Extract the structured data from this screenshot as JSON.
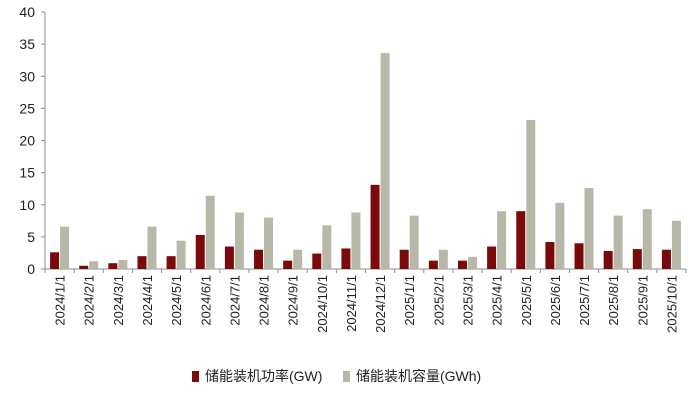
{
  "chart_data": {
    "type": "bar",
    "categories": [
      "2024/1/1",
      "2024/2/1",
      "2024/3/1",
      "2024/4/1",
      "2024/5/1",
      "2024/6/1",
      "2024/7/1",
      "2024/8/1",
      "2024/9/1",
      "2024/10/1",
      "2024/11/1",
      "2024/12/1",
      "2025/1/1",
      "2025/2/1",
      "2025/3/1",
      "2025/4/1",
      "2025/5/1",
      "2025/6/1",
      "2025/7/1",
      "2025/8/1",
      "2025/9/1",
      "2025/10/1"
    ],
    "series": [
      {
        "name": "储能装机功率(GW)",
        "color": "#7a0a0a",
        "values": [
          2.6,
          0.5,
          0.9,
          2.0,
          2.0,
          5.3,
          3.5,
          3.0,
          1.3,
          2.4,
          3.2,
          13.1,
          3.0,
          1.3,
          1.3,
          3.5,
          9.0,
          4.2,
          4.0,
          2.8,
          3.1,
          3.0
        ]
      },
      {
        "name": "储能装机容量(GWh)",
        "color": "#b8b8a8",
        "values": [
          6.6,
          1.2,
          1.4,
          6.6,
          4.4,
          11.4,
          8.8,
          8.0,
          3.0,
          6.8,
          8.8,
          33.6,
          8.3,
          3.0,
          1.9,
          9.0,
          23.2,
          10.3,
          12.6,
          8.3,
          9.3,
          7.5
        ]
      }
    ],
    "ylim": [
      0,
      40
    ],
    "yticks": [
      "0",
      "5",
      "10",
      "15",
      "20",
      "25",
      "30",
      "35",
      "40"
    ],
    "grid": false,
    "legend": "bottom-center"
  }
}
